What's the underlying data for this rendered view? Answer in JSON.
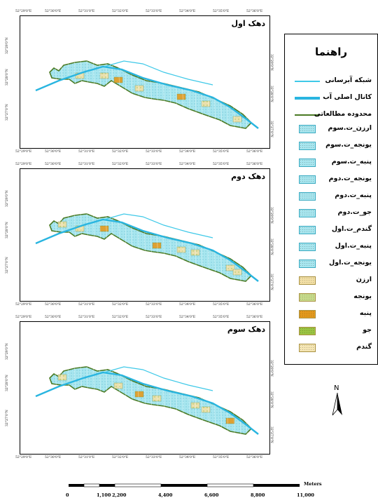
{
  "panels": [
    {
      "title": "دهک اول"
    },
    {
      "title": "دهک دوم"
    },
    {
      "title": "دهک سوم"
    }
  ],
  "lon_ticks": [
    "52°29'0\"E",
    "52°30'0\"E",
    "52°31'0\"E",
    "52°32'0\"E",
    "52°33'0\"E",
    "52°34'0\"E",
    "52°35'0\"E",
    "52°36'0\"E"
  ],
  "lat_ticks": [
    "32°29'0\"N",
    "32°28'0\"N",
    "32°27'0\"N"
  ],
  "legend": {
    "title": "راهنما",
    "lines": [
      {
        "label": "شبکه آبرسانی",
        "color": "#3fc9e8"
      },
      {
        "label": "کانال اصلی آب",
        "color": "#29b5e0"
      },
      {
        "label": "محدوده مطالعاتی",
        "color": "#4a7a24"
      }
    ],
    "classes": [
      {
        "label": "ارزن_ت.سوم",
        "color": "#a8e6ef"
      },
      {
        "label": "یونجه_ت.سوم",
        "color": "#a8e6ef"
      },
      {
        "label": "پنبه_ت.سوم",
        "color": "#a8e6ef"
      },
      {
        "label": "یونجه_ت.دوم",
        "color": "#a8e6ef"
      },
      {
        "label": "پنبه_ت.دوم",
        "color": "#a8e6ef"
      },
      {
        "label": "جو_ت.دوم",
        "color": "#a8e6ef"
      },
      {
        "label": "گندم_ت.اول",
        "color": "#a8e6ef"
      },
      {
        "label": "پنبه_ت.اول",
        "color": "#a8e6ef"
      },
      {
        "label": "یونجه_ت.اول",
        "color": "#a8e6ef"
      },
      {
        "label": "ارزن",
        "color": "#f3e0a6"
      },
      {
        "label": "یونجه",
        "color": "#c8dc8c"
      },
      {
        "label": "پنبه",
        "color": "#e49a1e"
      },
      {
        "label": "جو",
        "color": "#9bc442"
      },
      {
        "label": "گندم",
        "color": "#f5e6b4"
      }
    ]
  },
  "north_label": "N",
  "scale": {
    "labels": [
      "0",
      "1,100",
      "2,200",
      "4,400",
      "6,600",
      "8,800",
      "11,000"
    ],
    "units": "Meters"
  }
}
